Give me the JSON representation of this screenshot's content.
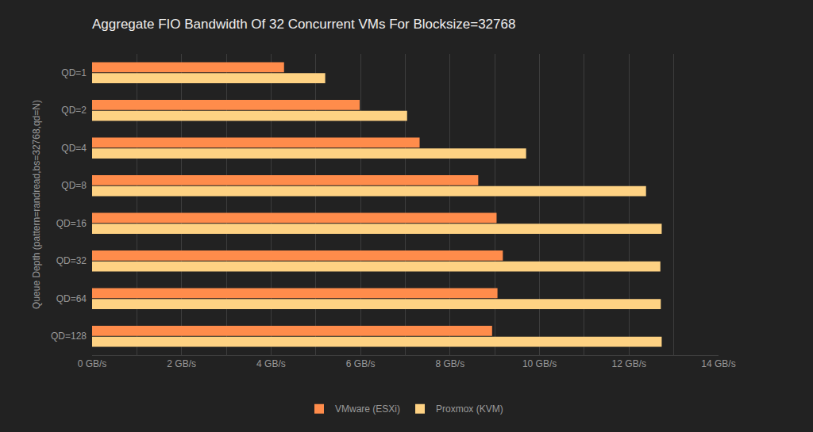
{
  "chart_data": {
    "type": "bar",
    "orientation": "horizontal",
    "title": "Aggregate FIO Bandwidth Of 32 Concurrent VMs For Blocksize=32768",
    "ylabel": "Queue Depth (pattern=randread,bs=32768,qd=N)",
    "categories": [
      "QD=1",
      "QD=2",
      "QD=4",
      "QD=8",
      "QD=16",
      "QD=32",
      "QD=64",
      "QD=128"
    ],
    "series": [
      {
        "name": "VMware (ESXi)",
        "color": "#ff8c4b",
        "values": [
          4.29,
          5.98,
          7.32,
          8.63,
          9.04,
          9.18,
          9.06,
          8.94
        ]
      },
      {
        "name": "Proxmox (KVM)",
        "color": "#fed283",
        "values": [
          5.21,
          7.04,
          9.7,
          12.38,
          12.73,
          12.7,
          12.71,
          12.73
        ]
      }
    ],
    "xlim": [
      0,
      14
    ],
    "xticks": [
      {
        "value": 0,
        "label": "0 GB/s"
      },
      {
        "value": 2,
        "label": "2 GB/s"
      },
      {
        "value": 4,
        "label": "4 GB/s"
      },
      {
        "value": 6,
        "label": "6 GB/s"
      },
      {
        "value": 8,
        "label": "8 GB/s"
      },
      {
        "value": 10,
        "label": "10 GB/s"
      },
      {
        "value": 12,
        "label": "12 GB/s"
      },
      {
        "value": 14,
        "label": "14 GB/s"
      }
    ],
    "grid": true,
    "legend": "bottom"
  }
}
